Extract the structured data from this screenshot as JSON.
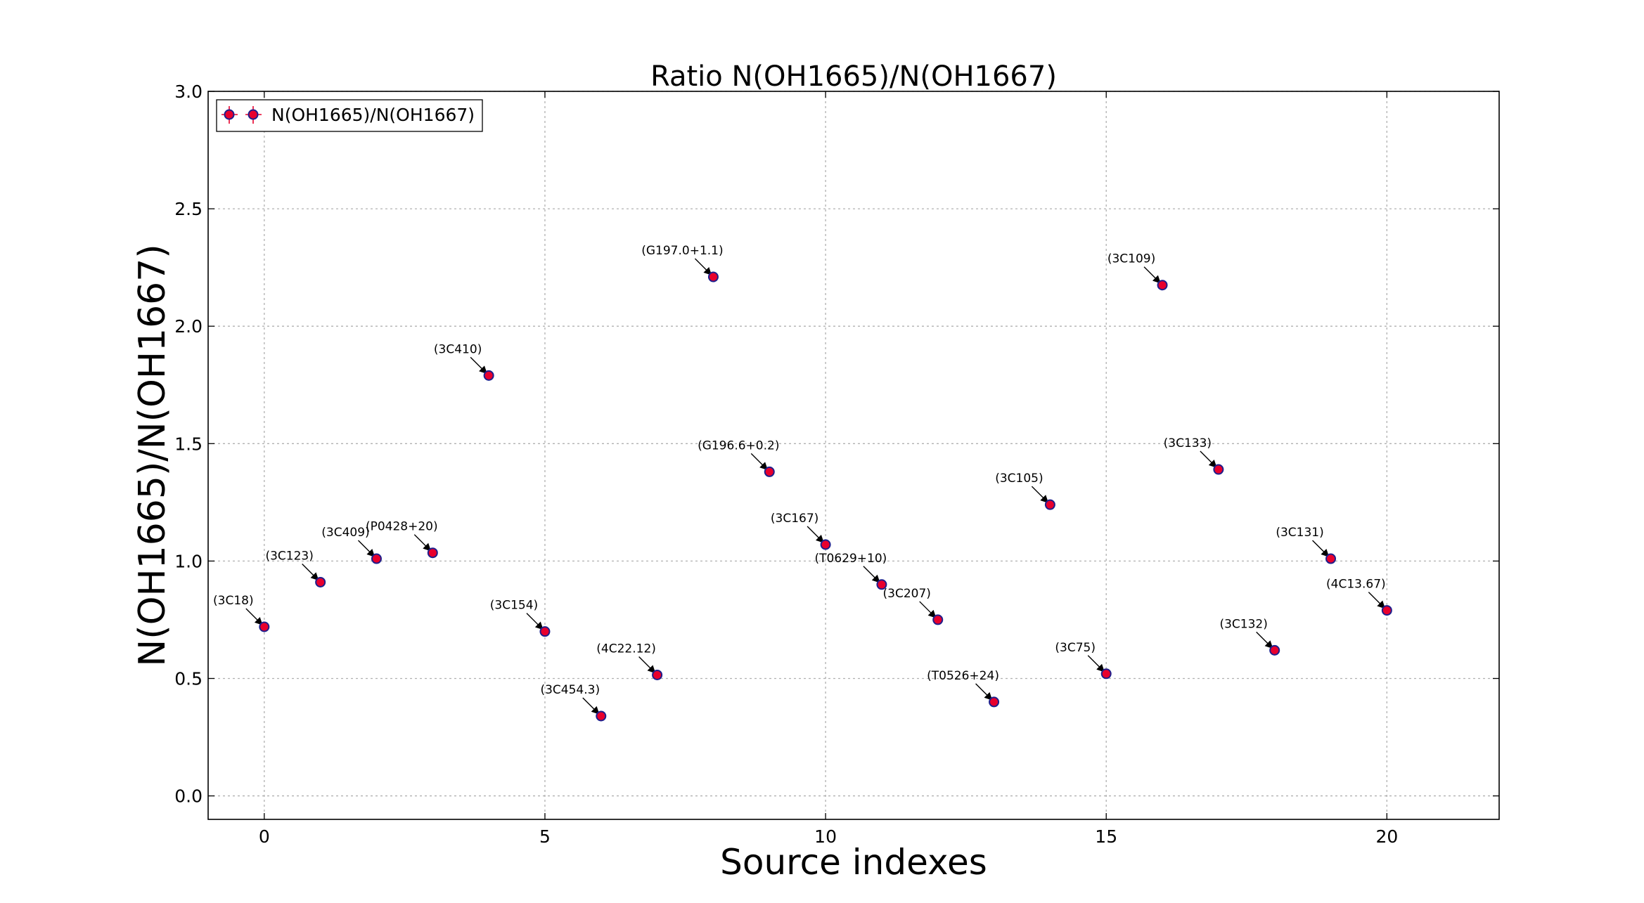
{
  "chart_data": {
    "type": "scatter",
    "title": "Ratio N(OH1665)/N(OH1667)",
    "xlabel": "Source indexes",
    "ylabel": "N(OH1665)/N(OH1667)",
    "xlim": [
      -1,
      22
    ],
    "ylim": [
      -0.1,
      3.0
    ],
    "xticks": [
      0,
      5,
      10,
      15,
      20
    ],
    "yticks": [
      0.0,
      0.5,
      1.0,
      1.5,
      2.0,
      2.5,
      3.0
    ],
    "xtick_labels": [
      "0",
      "5",
      "10",
      "15",
      "20"
    ],
    "ytick_labels": [
      "0.0",
      "0.5",
      "1.0",
      "1.5",
      "2.0",
      "2.5",
      "3.0"
    ],
    "grid": true,
    "legend": {
      "placement": "top-left",
      "entries": [
        "N(OH1665)/N(OH1667)"
      ]
    },
    "series": [
      {
        "name": "N(OH1665)/N(OH1667)",
        "marker_fill": "#e8002d",
        "marker_edge": "#1e1e8c",
        "x": [
          0,
          1,
          2,
          3,
          4,
          5,
          6,
          7,
          8,
          9,
          10,
          11,
          12,
          13,
          14,
          15,
          16,
          17,
          18,
          19,
          20
        ],
        "y": [
          0.72,
          0.91,
          1.01,
          1.035,
          1.79,
          0.7,
          0.34,
          0.515,
          2.21,
          1.38,
          1.07,
          0.9,
          0.75,
          0.4,
          1.24,
          0.52,
          2.175,
          1.39,
          0.62,
          1.01,
          0.79
        ],
        "labels": [
          "(3C18)",
          "(3C123)",
          "(3C409)",
          "(P0428+20)",
          "(3C410)",
          "(3C154)",
          "(3C454.3)",
          "(4C22.12)",
          "(G197.0+1.1)",
          "(G196.6+0.2)",
          "(3C167)",
          "(T0629+10)",
          "(3C207)",
          "(T0526+24)",
          "(3C105)",
          "(3C75)",
          "(3C109)",
          "(3C133)",
          "(3C132)",
          "(3C131)",
          "(4C13.67)"
        ]
      }
    ]
  }
}
